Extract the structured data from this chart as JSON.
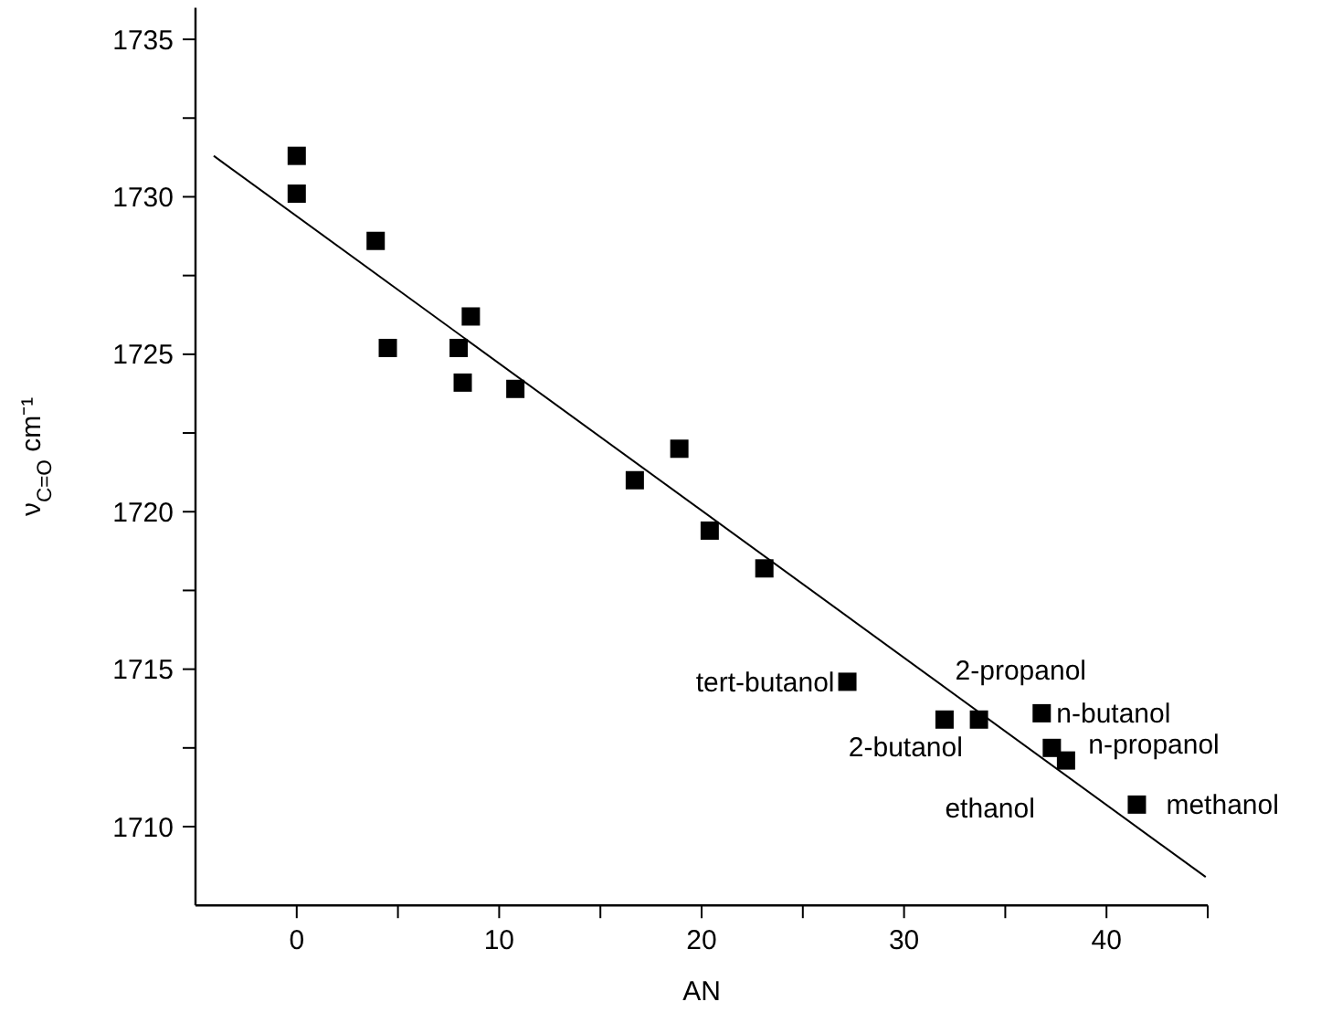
{
  "chart_data": {
    "type": "scatter",
    "xlabel": "AN",
    "ylabel": "ν$_{C=O}$ cm⁻¹",
    "marker": "square",
    "grid": false,
    "xlim": [
      -5,
      45
    ],
    "ylim": [
      1707.5,
      1736
    ],
    "xticks": [
      0,
      {
        "value": 5,
        "label": null
      },
      10,
      {
        "value": 15,
        "label": null
      },
      20,
      {
        "value": 25,
        "label": null
      },
      30,
      {
        "value": 35,
        "label": null
      },
      40,
      {
        "value": 45,
        "label": null
      }
    ],
    "yticks": [
      1710,
      {
        "value": 1712.5,
        "label": null
      },
      1715,
      {
        "value": 1717.5,
        "label": null
      },
      1720,
      {
        "value": 1722.5,
        "label": null
      },
      1725,
      {
        "value": 1727.5,
        "label": null
      },
      1730,
      {
        "value": 1732.5,
        "label": null
      },
      1735
    ],
    "series": [
      {
        "color": "#000000",
        "x": [
          0,
          0,
          3.9,
          4.5,
          8.0,
          8.6,
          8.2,
          10.8,
          16.7,
          18.9,
          20.4,
          23.1,
          27.2,
          32.0,
          33.7,
          36.8,
          37.3,
          38.0,
          41.5
        ],
        "values": [
          1731.3,
          1730.1,
          1728.6,
          1725.2,
          1725.2,
          1726.2,
          1724.1,
          1723.9,
          1721.0,
          1722.0,
          1719.4,
          1718.2,
          1714.6,
          1713.4,
          1713.4,
          1713.6,
          1712.5,
          1712.1,
          1710.7
        ]
      },
      {
        "type": "line",
        "color": "#000000",
        "marker": "none",
        "x": [
          -4.1,
          44.9
        ],
        "values": [
          1731.3,
          1708.4
        ]
      }
    ],
    "annotations": [
      {
        "text": "tert-butanol",
        "x": 27.2,
        "y": 1714.6
      },
      {
        "text": "2-propanol",
        "x": 33.7,
        "y": 1713.4
      },
      {
        "text": "n-butanol",
        "x": 36.8,
        "y": 1713.6
      },
      {
        "text": "2-butanol",
        "x": 32.0,
        "y": 1713.4
      },
      {
        "text": "n-propanol",
        "x": 37.3,
        "y": 1712.5
      },
      {
        "text": "ethanol",
        "x": 38.0,
        "y": 1712.1
      },
      {
        "text": "methanol",
        "x": 41.5,
        "y": 1710.7
      }
    ]
  }
}
